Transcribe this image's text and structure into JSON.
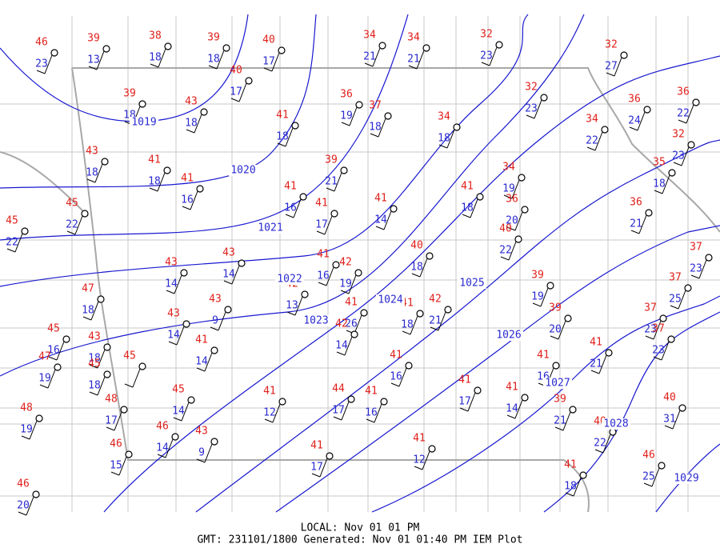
{
  "stations": [
    {
      "temp": 46,
      "dew": 23
    },
    {
      "temp": 39,
      "dew": 13
    },
    {
      "temp": 38,
      "dew": 18
    },
    {
      "temp": 39,
      "dew": 18
    },
    {
      "temp": 40,
      "dew": 17
    },
    {
      "temp": 34,
      "dew": 21
    },
    {
      "temp": 34,
      "dew": 21
    },
    {
      "temp": 32,
      "dew": 23
    },
    {
      "temp": 32,
      "dew": 27
    },
    {
      "temp": 40,
      "dew": 17
    },
    {
      "temp": 39,
      "dew": 18
    },
    {
      "temp": 43,
      "dew": 18
    },
    {
      "temp": 36,
      "dew": 19
    },
    {
      "temp": 37,
      "dew": 18
    },
    {
      "temp": 32,
      "dew": 23
    },
    {
      "temp": 36,
      "dew": 24
    },
    {
      "temp": 36,
      "dew": 22
    },
    {
      "temp": 41,
      "dew": 18
    },
    {
      "temp": 34,
      "dew": 18
    },
    {
      "temp": 34,
      "dew": 22
    },
    {
      "temp": 32,
      "dew": 23
    },
    {
      "temp": 43,
      "dew": 18
    },
    {
      "temp": 41,
      "dew": 18
    },
    {
      "temp": 41,
      "dew": 16
    },
    {
      "temp": 39,
      "dew": 21
    },
    {
      "temp": 35,
      "dew": 18
    },
    {
      "temp": 34,
      "dew": 19
    },
    {
      "temp": 45,
      "dew": 22
    },
    {
      "temp": 45,
      "dew": 22
    },
    {
      "temp": 41,
      "dew": 16
    },
    {
      "temp": 41,
      "dew": 17
    },
    {
      "temp": 41,
      "dew": 14
    },
    {
      "temp": 41,
      "dew": 18
    },
    {
      "temp": 36,
      "dew": 20
    },
    {
      "temp": 36,
      "dew": 21
    },
    {
      "temp": 40,
      "dew": 22
    },
    {
      "temp": 43,
      "dew": 14
    },
    {
      "temp": 43,
      "dew": 14
    },
    {
      "temp": 41,
      "dew": 16
    },
    {
      "temp": 42,
      "dew": 19
    },
    {
      "temp": 40,
      "dew": 18
    },
    {
      "temp": 37,
      "dew": 23
    },
    {
      "temp": 42,
      "dew": 13
    },
    {
      "temp": 39,
      "dew": 19
    },
    {
      "temp": 37,
      "dew": 25
    },
    {
      "temp": 47,
      "dew": 18
    },
    {
      "temp": 43,
      "dew": 9
    },
    {
      "temp": 41,
      "dew": 26
    },
    {
      "temp": 41,
      "dew": 18
    },
    {
      "temp": 42,
      "dew": 21
    },
    {
      "temp": 39,
      "dew": 20
    },
    {
      "temp": 37,
      "dew": 23
    },
    {
      "temp": 43,
      "dew": 14
    },
    {
      "temp": 42,
      "dew": 14
    },
    {
      "temp": 37,
      "dew": 23
    },
    {
      "temp": 45,
      "dew": 16
    },
    {
      "temp": 43,
      "dew": 18
    },
    {
      "temp": 45,
      "dew": 18
    },
    {
      "temp": 45
    },
    {
      "temp": 41,
      "dew": 14
    },
    {
      "temp": 47,
      "dew": 19
    },
    {
      "temp": 41,
      "dew": 16
    },
    {
      "temp": 41,
      "dew": 16
    },
    {
      "temp": 41,
      "dew": 21
    },
    {
      "temp": 48,
      "dew": 17
    },
    {
      "temp": 45,
      "dew": 14
    },
    {
      "temp": 41,
      "dew": 12
    },
    {
      "temp": 44,
      "dew": 17
    },
    {
      "temp": 41,
      "dew": 16
    },
    {
      "temp": 41,
      "dew": 17
    },
    {
      "temp": 41,
      "dew": 14
    },
    {
      "temp": 39,
      "dew": 21
    },
    {
      "temp": 40,
      "dew": 31
    },
    {
      "temp": 48,
      "dew": 19
    },
    {
      "temp": 46,
      "dew": 14
    },
    {
      "temp": 43,
      "dew": 9
    },
    {
      "temp": 40,
      "dew": 22
    },
    {
      "temp": 41,
      "dew": 12
    },
    {
      "temp": 41,
      "dew": 17
    },
    {
      "temp": 46,
      "dew": 15
    },
    {
      "temp": 46,
      "dew": 25
    },
    {
      "temp": 41,
      "dew": 18
    },
    {
      "temp": 46,
      "dew": 20
    }
  ],
  "isobars": [
    1019,
    1020,
    1021,
    1022,
    1023,
    1024,
    1025,
    1026,
    1027,
    1028,
    1029
  ],
  "footer": {
    "local": "LOCAL: Nov 01 01 PM",
    "gmt": "GMT: 231101/1800 Generated: Nov 01 01:40 PM IEM Plot"
  }
}
